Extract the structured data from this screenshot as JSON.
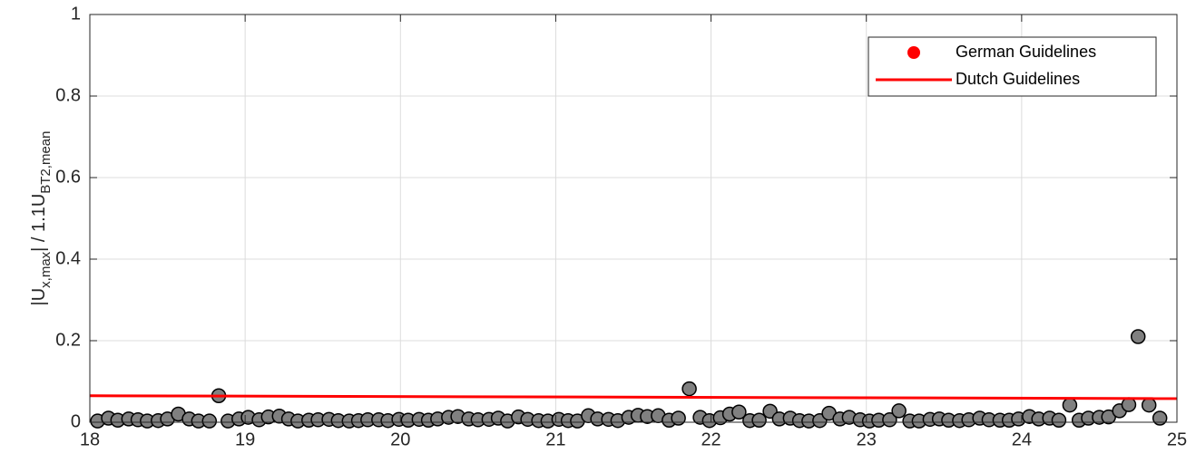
{
  "chart_data": {
    "type": "scatter",
    "y_label_parts": [
      "|U",
      "x,max",
      "| / 1.1U",
      "BT2,mean"
    ],
    "xlim": [
      18,
      25
    ],
    "ylim": [
      0,
      1
    ],
    "xticks": [
      18,
      19,
      20,
      21,
      22,
      23,
      24,
      25
    ],
    "yticks": [
      0,
      0.2,
      0.4,
      0.6,
      0.8,
      1
    ],
    "grid": true,
    "legend": "northeast",
    "series": [
      {
        "name": "German Guidelines",
        "type": "scatter",
        "color": "#808080",
        "edge_color": "#000000",
        "legend_color": "#ff0000",
        "x": [
          18.05,
          18.12,
          18.18,
          18.25,
          18.31,
          18.37,
          18.44,
          18.5,
          18.57,
          18.64,
          18.7,
          18.77,
          18.83,
          18.89,
          18.96,
          19.02,
          19.09,
          19.15,
          19.22,
          19.28,
          19.34,
          19.41,
          19.47,
          19.54,
          19.6,
          19.67,
          19.73,
          19.79,
          19.86,
          19.92,
          19.99,
          20.05,
          20.12,
          20.18,
          20.24,
          20.31,
          20.37,
          20.44,
          20.5,
          20.57,
          20.63,
          20.69,
          20.76,
          20.82,
          20.89,
          20.95,
          21.02,
          21.08,
          21.14,
          21.21,
          21.27,
          21.34,
          21.4,
          21.47,
          21.53,
          21.59,
          21.66,
          21.73,
          21.79,
          21.86,
          21.93,
          21.99,
          22.06,
          22.12,
          22.18,
          22.25,
          22.31,
          22.38,
          22.44,
          22.51,
          22.57,
          22.63,
          22.7,
          22.76,
          22.83,
          22.89,
          22.96,
          23.02,
          23.08,
          23.15,
          23.21,
          23.28,
          23.34,
          23.41,
          23.47,
          23.53,
          23.6,
          23.66,
          23.73,
          23.79,
          23.86,
          23.92,
          23.98,
          24.05,
          24.11,
          24.18,
          24.24,
          24.31,
          24.37,
          24.43,
          24.5,
          24.56,
          24.63,
          24.69,
          24.75,
          24.82,
          24.89
        ],
        "values": [
          0.003,
          0.01,
          0.005,
          0.008,
          0.006,
          0.003,
          0.004,
          0.008,
          0.02,
          0.008,
          0.003,
          0.003,
          0.065,
          0.003,
          0.008,
          0.012,
          0.006,
          0.013,
          0.015,
          0.008,
          0.003,
          0.005,
          0.006,
          0.007,
          0.004,
          0.003,
          0.004,
          0.006,
          0.006,
          0.004,
          0.007,
          0.005,
          0.007,
          0.005,
          0.008,
          0.012,
          0.014,
          0.008,
          0.006,
          0.007,
          0.01,
          0.003,
          0.013,
          0.007,
          0.004,
          0.003,
          0.007,
          0.004,
          0.003,
          0.016,
          0.008,
          0.007,
          0.004,
          0.012,
          0.017,
          0.014,
          0.016,
          0.005,
          0.01,
          0.082,
          0.012,
          0.004,
          0.011,
          0.02,
          0.025,
          0.004,
          0.005,
          0.027,
          0.008,
          0.01,
          0.004,
          0.003,
          0.004,
          0.022,
          0.008,
          0.012,
          0.006,
          0.003,
          0.005,
          0.006,
          0.028,
          0.003,
          0.003,
          0.007,
          0.008,
          0.005,
          0.004,
          0.006,
          0.01,
          0.006,
          0.005,
          0.005,
          0.008,
          0.014,
          0.008,
          0.01,
          0.005,
          0.042,
          0.005,
          0.01,
          0.012,
          0.013,
          0.028,
          0.043,
          0.21,
          0.042,
          0.01
        ]
      },
      {
        "name": "Dutch Guidelines",
        "type": "line",
        "color": "#ff0000",
        "x": [
          18,
          25
        ],
        "values": [
          0.065,
          0.058
        ]
      }
    ]
  }
}
